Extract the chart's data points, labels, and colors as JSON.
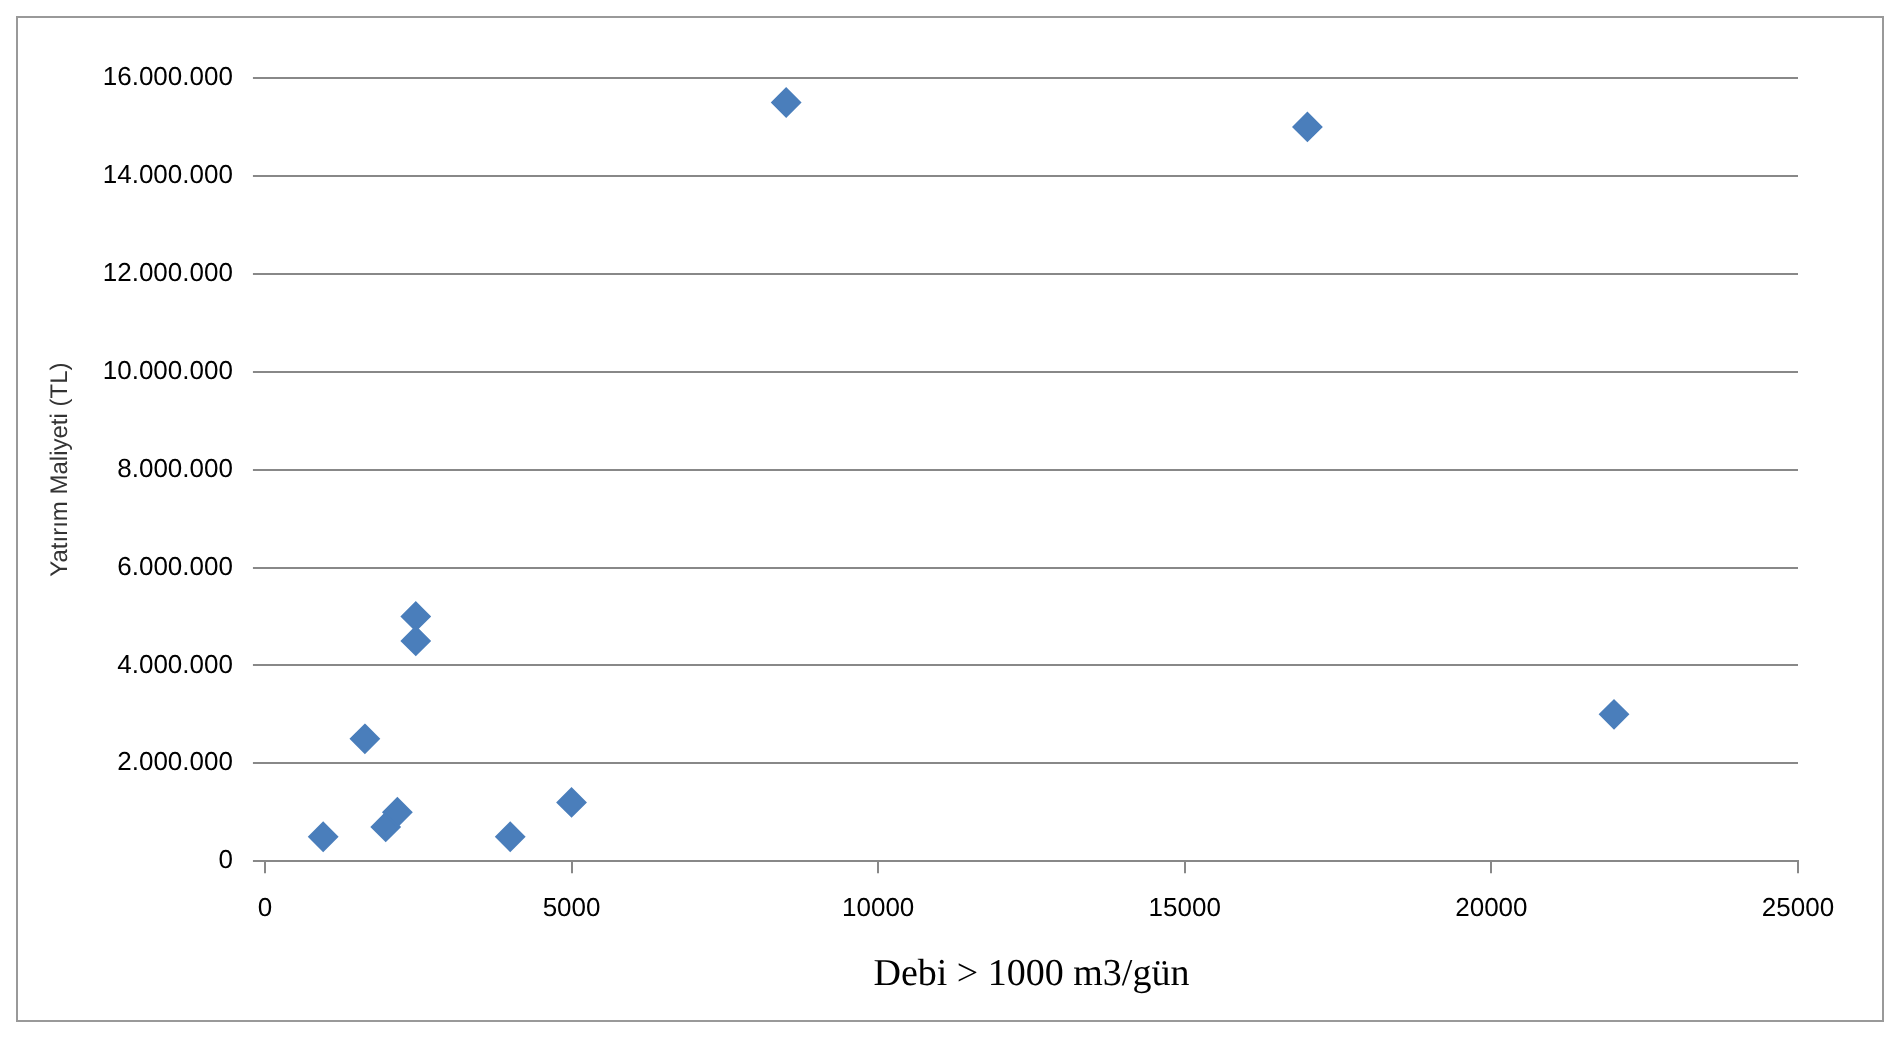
{
  "chart_data": {
    "type": "scatter",
    "xlabel": "Debi > 1000 m3/gün",
    "ylabel": "Yatırım Maliyeti (TL)",
    "series": [
      {
        "color": "#4a7ebb",
        "x": [
          950,
          1630,
          1970,
          2160,
          2460,
          2460,
          4000,
          5000,
          8500,
          17000,
          22000
        ],
        "values": [
          500000,
          2500000,
          700000,
          1000000,
          5000000,
          4500000,
          500000,
          1200000,
          15500000,
          15000000,
          3000000
        ]
      }
    ],
    "xlim": [
      0,
      25000
    ],
    "xticks": [
      0,
      5000,
      10000,
      15000,
      20000,
      25000
    ],
    "ylim": [
      0,
      16000000
    ],
    "yticks": [
      {
        "value": 0,
        "label": "0"
      },
      {
        "value": 2000000,
        "label": "2.000.000"
      },
      {
        "value": 4000000,
        "label": "4.000.000"
      },
      {
        "value": 6000000,
        "label": "6.000.000"
      },
      {
        "value": 8000000,
        "label": "8.000.000"
      },
      {
        "value": 10000000,
        "label": "10.000.000"
      },
      {
        "value": 12000000,
        "label": "12.000.000"
      },
      {
        "value": 14000000,
        "label": "14.000.000"
      },
      {
        "value": 16000000,
        "label": "16.000.000"
      }
    ],
    "grid": "y",
    "marker": "diamond"
  }
}
